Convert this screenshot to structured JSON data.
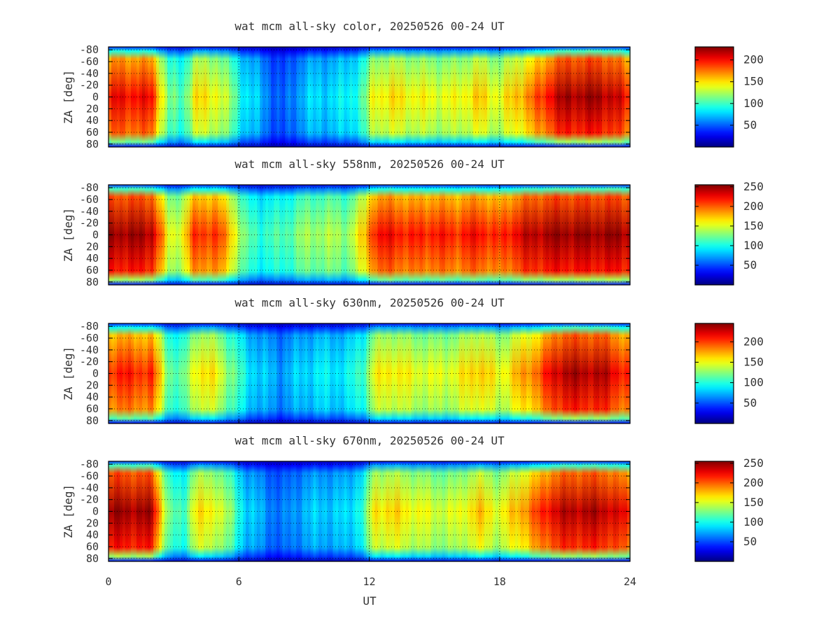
{
  "chart_data": [
    {
      "type": "heatmap",
      "title": "wat mcm all-sky color, 20250526 00-24 UT",
      "ylabel": "ZA [deg]",
      "xlim": [
        0,
        24
      ],
      "ylim": [
        -85,
        85
      ],
      "x_ticks": [
        0,
        6,
        12,
        18,
        24
      ],
      "y_tick_labels": [
        "-80",
        "-60",
        "-40",
        "-20",
        "0",
        "20",
        "40",
        "60",
        "80"
      ],
      "colorbar_ticks": [
        50,
        100,
        150,
        200
      ],
      "colorbar_range": [
        0,
        230
      ],
      "colormap": "jet",
      "grid": true,
      "intensity_profile": {
        "ut": [
          0,
          0.3,
          2.0,
          2.8,
          3.4,
          4.0,
          5.0,
          5.6,
          6.3,
          7.0,
          8.0,
          9.0,
          10.0,
          11.0,
          11.8,
          12.2,
          13.0,
          14.0,
          15.0,
          16.0,
          17.0,
          18.0,
          19.0,
          20.0,
          20.5,
          21.0,
          22.0,
          23.0,
          23.5,
          24
        ],
        "value": [
          190,
          205,
          200,
          110,
          105,
          150,
          145,
          120,
          85,
          70,
          45,
          75,
          80,
          85,
          110,
          145,
          150,
          145,
          140,
          140,
          155,
          140,
          165,
          190,
          215,
          220,
          225,
          220,
          210,
          190
        ]
      }
    },
    {
      "type": "heatmap",
      "title": "wat mcm all-sky 558nm, 20250526 00-24 UT",
      "ylabel": "ZA [deg]",
      "xlim": [
        0,
        24
      ],
      "ylim": [
        -85,
        85
      ],
      "x_ticks": [
        0,
        6,
        12,
        18,
        24
      ],
      "y_tick_labels": [
        "-80",
        "-60",
        "-40",
        "-20",
        "0",
        "20",
        "40",
        "60",
        "80"
      ],
      "colorbar_ticks": [
        50,
        100,
        150,
        200,
        250
      ],
      "colorbar_range": [
        0,
        255
      ],
      "colormap": "jet",
      "grid": true,
      "intensity_profile": {
        "ut": [
          0,
          0.3,
          2.0,
          2.8,
          3.4,
          4.0,
          5.0,
          5.6,
          6.3,
          7.0,
          8.0,
          9.0,
          10.0,
          11.0,
          11.8,
          12.2,
          13.0,
          14.0,
          15.0,
          16.0,
          17.0,
          18.0,
          19.0,
          20.0,
          20.5,
          21.0,
          22.0,
          23.0,
          23.5,
          24
        ],
        "value": [
          245,
          250,
          245,
          150,
          160,
          215,
          210,
          180,
          120,
          110,
          115,
          135,
          140,
          135,
          175,
          220,
          225,
          215,
          220,
          215,
          225,
          210,
          235,
          245,
          250,
          250,
          250,
          250,
          250,
          245
        ]
      }
    },
    {
      "type": "heatmap",
      "title": "wat mcm all-sky 630nm, 20250526 00-24 UT",
      "ylabel": "ZA [deg]",
      "xlim": [
        0,
        24
      ],
      "ylim": [
        -85,
        85
      ],
      "x_ticks": [
        0,
        6,
        12,
        18,
        24
      ],
      "y_tick_labels": [
        "-80",
        "-60",
        "-40",
        "-20",
        "0",
        "20",
        "40",
        "60",
        "80"
      ],
      "colorbar_ticks": [
        50,
        100,
        150,
        200
      ],
      "colorbar_range": [
        0,
        245
      ],
      "colormap": "jet",
      "grid": true,
      "intensity_profile": {
        "ut": [
          0,
          0.3,
          2.0,
          2.8,
          3.4,
          4.0,
          5.0,
          5.6,
          6.3,
          7.0,
          8.0,
          9.0,
          10.0,
          11.0,
          11.8,
          12.2,
          13.0,
          14.0,
          15.0,
          16.0,
          17.0,
          18.0,
          19.0,
          20.0,
          20.5,
          21.0,
          22.0,
          23.0,
          23.5,
          24
        ],
        "value": [
          200,
          210,
          205,
          120,
          110,
          160,
          155,
          125,
          95,
          80,
          70,
          85,
          90,
          90,
          115,
          150,
          160,
          150,
          145,
          150,
          170,
          150,
          175,
          200,
          225,
          235,
          235,
          230,
          215,
          200
        ]
      }
    },
    {
      "type": "heatmap",
      "title": "wat mcm all-sky 670nm, 20250526 00-24 UT",
      "ylabel": "ZA [deg]",
      "xlabel": "UT",
      "xlim": [
        0,
        24
      ],
      "ylim": [
        -85,
        85
      ],
      "x_ticks": [
        0,
        6,
        12,
        18,
        24
      ],
      "y_tick_labels": [
        "-80",
        "-60",
        "-40",
        "-20",
        "0",
        "20",
        "40",
        "60",
        "80"
      ],
      "colorbar_ticks": [
        50,
        100,
        150,
        200,
        250
      ],
      "colorbar_range": [
        0,
        255
      ],
      "colormap": "jet",
      "grid": true,
      "intensity_profile": {
        "ut": [
          0,
          0.3,
          2.0,
          2.8,
          3.4,
          4.0,
          5.0,
          5.6,
          6.3,
          7.0,
          8.0,
          9.0,
          10.0,
          11.0,
          11.8,
          12.2,
          13.0,
          14.0,
          15.0,
          16.0,
          17.0,
          18.0,
          19.0,
          20.0,
          20.5,
          21.0,
          22.0,
          23.0,
          23.5,
          24
        ],
        "value": [
          245,
          250,
          245,
          120,
          110,
          165,
          160,
          130,
          90,
          75,
          60,
          80,
          85,
          85,
          115,
          165,
          170,
          160,
          150,
          150,
          175,
          155,
          185,
          215,
          235,
          240,
          245,
          240,
          230,
          215
        ]
      }
    }
  ]
}
